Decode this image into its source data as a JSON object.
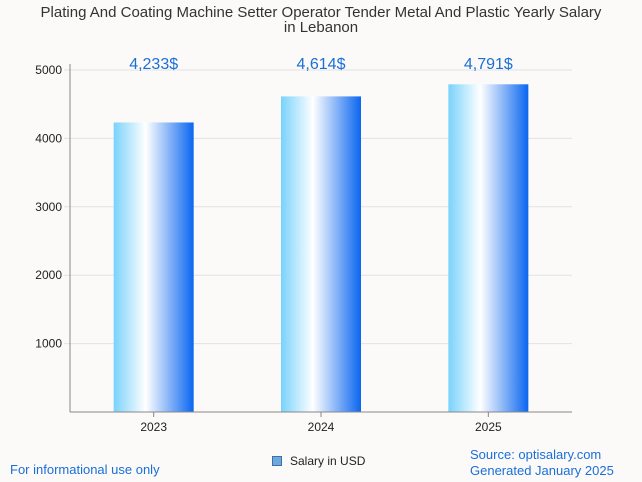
{
  "chart_data": {
    "type": "bar",
    "title_lines": [
      "Plating And Coating Machine Setter Operator Tender Metal And Plastic Yearly Salary",
      "in Lebanon"
    ],
    "categories": [
      "2023",
      "2024",
      "2025"
    ],
    "series": [
      {
        "name": "Salary in USD",
        "values": [
          4233,
          4614,
          4791
        ]
      }
    ],
    "data_labels": [
      "4,233$",
      "4,614$",
      "4,791$"
    ],
    "y_ticks": [
      1000,
      2000,
      3000,
      4000,
      5000
    ],
    "ylim": [
      0,
      5000
    ],
    "grid": true,
    "legend_position": "bottom"
  },
  "footer": {
    "left_note": "For informational use only",
    "source": "Source: optisalary.com",
    "generated": "Generated January 2025"
  },
  "colors": {
    "bar_light": "#d9f5ff",
    "bar_mid": "#79d2fb",
    "bar_dark": "#0a66f0",
    "label": "#1a6fd8",
    "grid": "#e2e2e2",
    "axis": "#888888"
  }
}
